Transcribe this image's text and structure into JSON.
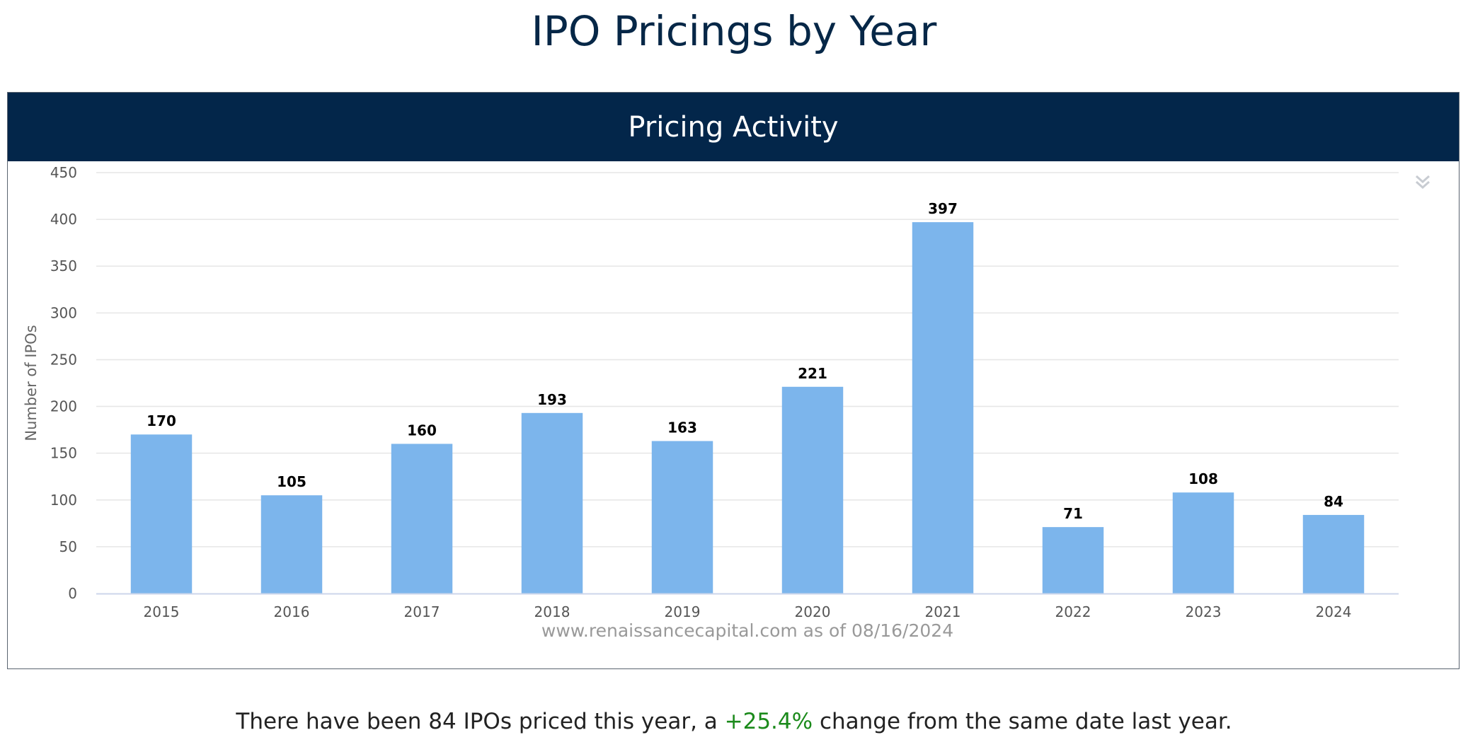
{
  "page": {
    "title": "IPO Pricings by Year"
  },
  "panel": {
    "header_title": "Pricing Activity",
    "menu_icon": "double-chevron-down-icon"
  },
  "summary": {
    "prefix": "There have been 84 IPOs priced this year, a ",
    "change": "+25.4%",
    "suffix": " change from the same date last year.",
    "change_color": "#1b8a1b"
  },
  "colors": {
    "bar": "#7cb5ec",
    "header_bg": "#03264a",
    "title": "#062747"
  },
  "chart_data": {
    "type": "bar",
    "title": "Pricing Activity",
    "ylabel": "Number of IPOs",
    "xlabel": "",
    "categories": [
      "2015",
      "2016",
      "2017",
      "2018",
      "2019",
      "2020",
      "2021",
      "2022",
      "2023",
      "2024"
    ],
    "values": [
      170,
      105,
      160,
      193,
      163,
      221,
      397,
      71,
      108,
      84
    ],
    "ylim": [
      0,
      450
    ],
    "yticks": [
      0,
      50,
      100,
      150,
      200,
      250,
      300,
      350,
      400,
      450
    ],
    "grid": true,
    "legend": "none",
    "credit": "www.renaissancecapital.com as of 08/16/2024"
  }
}
